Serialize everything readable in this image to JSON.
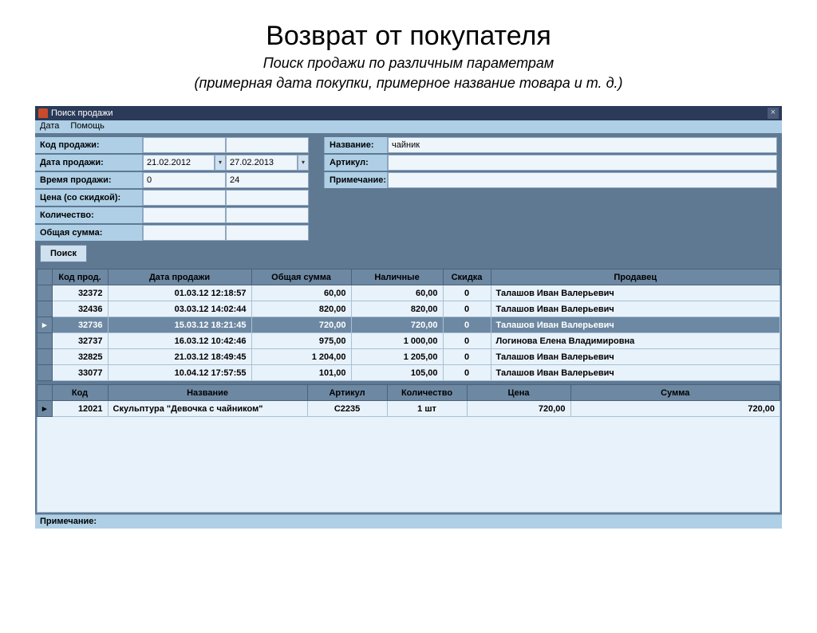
{
  "slide": {
    "title": "Возврат от покупателя",
    "subtitle1": "Поиск продажи по различным параметрам",
    "subtitle2": "(примерная дата покупки, примерное название товара и т. д.)"
  },
  "window": {
    "title": "Поиск продажи",
    "menu": {
      "date": "Дата",
      "help": "Помощь"
    },
    "form": {
      "sale_code_label": "Код продажи:",
      "sale_date_label": "Дата продажи:",
      "date_from": "21.02.2012",
      "date_to": "27.02.2013",
      "sale_time_label": "Время продажи:",
      "time_from": "0",
      "time_to": "24",
      "price_label": "Цена (со скидкой):",
      "qty_label": "Количество:",
      "sum_label": "Общая сумма:",
      "name_label": "Название:",
      "name_value": "чайник",
      "sku_label": "Артикул:",
      "note_label": "Примечание:",
      "search_btn": "Поиск"
    },
    "sales_table": {
      "columns": [
        "Код прод.",
        "Дата продажи",
        "Общая сумма",
        "Наличные",
        "Скидка",
        "Продавец"
      ],
      "col_widths": [
        "70px",
        "180px",
        "125px",
        "115px",
        "60px",
        "auto"
      ],
      "rows": [
        {
          "marker": "",
          "code": "32372",
          "date": "01.03.12 12:18:57",
          "sum": "60,00",
          "cash": "60,00",
          "disc": "0",
          "seller": "Талашов Иван Валерьевич",
          "selected": false
        },
        {
          "marker": "",
          "code": "32436",
          "date": "03.03.12 14:02:44",
          "sum": "820,00",
          "cash": "820,00",
          "disc": "0",
          "seller": "Талашов Иван Валерьевич",
          "selected": false
        },
        {
          "marker": "▸",
          "code": "32736",
          "date": "15.03.12 18:21:45",
          "sum": "720,00",
          "cash": "720,00",
          "disc": "0",
          "seller": "Талашов Иван Валерьевич",
          "selected": true
        },
        {
          "marker": "",
          "code": "32737",
          "date": "16.03.12 10:42:46",
          "sum": "975,00",
          "cash": "1 000,00",
          "disc": "0",
          "seller": "Логинова Елена Владимировна",
          "selected": false
        },
        {
          "marker": "",
          "code": "32825",
          "date": "21.03.12 18:49:45",
          "sum": "1 204,00",
          "cash": "1 205,00",
          "disc": "0",
          "seller": "Талашов Иван Валерьевич",
          "selected": false
        },
        {
          "marker": "",
          "code": "33077",
          "date": "10.04.12 17:57:55",
          "sum": "101,00",
          "cash": "105,00",
          "disc": "0",
          "seller": "Талашов Иван Валерьевич",
          "selected": false
        }
      ]
    },
    "items_table": {
      "columns": [
        "Код",
        "Название",
        "Артикул",
        "Количество",
        "Цена",
        "Сумма"
      ],
      "col_widths": [
        "70px",
        "250px",
        "100px",
        "100px",
        "130px",
        "auto"
      ],
      "rows": [
        {
          "marker": "▸",
          "code": "12021",
          "name": "Скульптура \"Девочка с чайником\"",
          "sku": "C2235",
          "qty": "1 шт",
          "price": "720,00",
          "sum": "720,00"
        }
      ]
    },
    "footer_note_label": "Примечание:"
  }
}
